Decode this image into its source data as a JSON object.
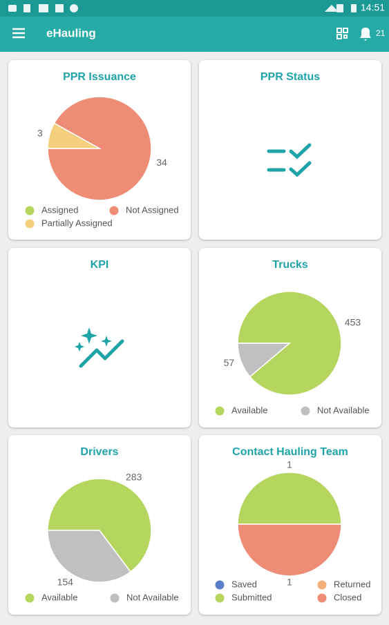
{
  "status_bar": {
    "time": "14:51"
  },
  "app_bar": {
    "title": "eHauling",
    "notification_count": 21
  },
  "cards": [
    {
      "title": "PPR Issuance",
      "chart_data": {
        "type": "pie",
        "categories": [
          "Assigned",
          "Not Assigned",
          "Partially Assigned"
        ],
        "values": [
          null,
          34,
          3
        ],
        "colors": [
          "#b5d65e",
          "#ee8c76",
          "#f5cf7e"
        ]
      }
    },
    {
      "title": "PPR Status"
    },
    {
      "title": "KPI"
    },
    {
      "title": "Trucks",
      "chart_data": {
        "type": "pie",
        "categories": [
          "Available",
          "Not Available"
        ],
        "values": [
          453,
          57
        ],
        "colors": [
          "#b5d65e",
          "#c0c0c0"
        ]
      }
    },
    {
      "title": "Drivers",
      "chart_data": {
        "type": "pie",
        "categories": [
          "Available",
          "Not Available"
        ],
        "values": [
          283,
          154
        ],
        "colors": [
          "#b5d65e",
          "#c0c0c0"
        ]
      }
    },
    {
      "title": "Contact Hauling Team",
      "chart_data": {
        "type": "pie",
        "categories": [
          "Saved",
          "Returned",
          "Submitted",
          "Closed"
        ],
        "values": [
          null,
          null,
          1,
          1
        ],
        "colors": [
          "#5b7ec9",
          "#f5b07a",
          "#b5d65e",
          "#ee8c76"
        ]
      }
    }
  ]
}
